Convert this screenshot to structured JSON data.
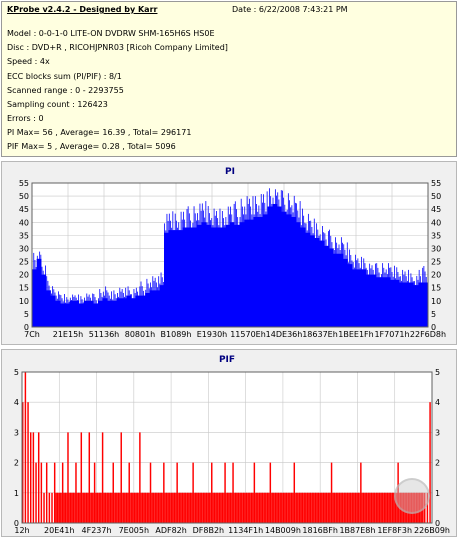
{
  "header": {
    "title": "KProbe v2.4.2 - Designed by Karr",
    "date": "Date : 6/22/2008 7:43:21 PM",
    "lines": [
      "Model : 0-0-1-0 LITE-ON DVDRW SHM-165H6S HS0E",
      "Disc : DVD+R , RICOHJPNR03 [Ricoh Company Limited]",
      "Speed : 4x",
      "ECC blocks sum (PI/PIF) : 8/1",
      "Scanned range : 0 - 2293755",
      "Sampling count : 126423",
      "Errors : 0",
      "PI Max= 56 , Average= 16.39 , Total= 296171",
      "PIF Max= 5 , Average= 0.28 , Total= 5096"
    ]
  },
  "colors": {
    "pi_fill": "#0000ff",
    "pif_fill": "#ff0000",
    "plot_bg": "#ffffff",
    "grid": "#c8c8c8",
    "panel_bg": "#f0f0f0",
    "title": "#000080"
  },
  "chart_data": [
    {
      "type": "area",
      "title": "PI",
      "ylim": [
        0,
        55
      ],
      "yticks": [
        0,
        5,
        10,
        15,
        20,
        25,
        30,
        35,
        40,
        45,
        50,
        55
      ],
      "xtick_labels": [
        "7Ch",
        "21E15h",
        "51136h",
        "80801h",
        "B1089h",
        "E1930h",
        "11570Eh",
        "14DE36h",
        "18637Eh",
        "1BEE1Fh",
        "1F7071h",
        "22F6D8h"
      ],
      "grid": true,
      "series": [
        {
          "values": [
            22,
            26,
            20,
            14,
            12,
            10,
            9,
            9,
            10,
            10,
            9,
            10,
            10,
            9,
            10,
            11,
            10,
            10,
            11,
            11,
            12,
            11,
            12,
            12,
            13,
            14,
            14,
            16,
            36,
            37,
            37,
            37,
            38,
            38,
            38,
            39,
            40,
            39,
            38,
            38,
            38,
            39,
            40,
            39,
            40,
            41,
            41,
            42,
            42,
            43,
            46,
            47,
            46,
            44,
            43,
            42,
            40,
            38,
            36,
            35,
            34,
            33,
            31,
            30,
            28,
            28,
            26,
            24,
            22,
            22,
            22,
            20,
            20,
            19,
            19,
            19,
            18,
            18,
            17,
            17,
            17,
            16,
            17,
            17
          ],
          "peaks": [
            31,
            30,
            25,
            20,
            16,
            14,
            13,
            12,
            13,
            13,
            13,
            14,
            14,
            13,
            15,
            16,
            14,
            15,
            16,
            16,
            17,
            16,
            17,
            18,
            19,
            20,
            20,
            22,
            45,
            46,
            46,
            47,
            48,
            47,
            47,
            48,
            49,
            48,
            47,
            47,
            47,
            49,
            50,
            49,
            50,
            51,
            51,
            52,
            53,
            54,
            56,
            55,
            55,
            53,
            52,
            51,
            49,
            47,
            45,
            43,
            42,
            41,
            39,
            38,
            35,
            35,
            33,
            31,
            29,
            28,
            28,
            26,
            26,
            25,
            25,
            25,
            24,
            24,
            23,
            23,
            22,
            21,
            25,
            24
          ]
        }
      ]
    },
    {
      "type": "bar",
      "title": "PIF",
      "ylim": [
        0,
        5
      ],
      "yticks": [
        0,
        1,
        2,
        3,
        4,
        5
      ],
      "xtick_labels": [
        "12h",
        "20E41h",
        "4F237h",
        "7E005h",
        "ADF82h",
        "DF8B2h",
        "1134F1h",
        "14B009h",
        "1816BFh",
        "1B87E8h",
        "1EF8F3h",
        "226B09h"
      ],
      "grid": true,
      "series": [
        {
          "values": [
            4,
            5,
            4,
            3,
            3,
            2,
            3,
            2,
            1,
            2,
            1,
            1,
            2,
            1,
            1,
            2,
            1,
            3,
            1,
            1,
            2,
            1,
            3,
            1,
            1,
            3,
            1,
            2,
            1,
            1,
            3,
            1,
            1,
            1,
            2,
            1,
            1,
            3,
            1,
            1,
            2,
            1,
            1,
            1,
            3,
            1,
            1,
            1,
            2,
            1,
            1,
            1,
            1,
            2,
            1,
            1,
            1,
            1,
            2,
            1,
            1,
            1,
            1,
            1,
            2,
            1,
            1,
            1,
            1,
            1,
            1,
            2,
            1,
            1,
            1,
            1,
            2,
            1,
            1,
            2,
            1,
            1,
            1,
            1,
            1,
            1,
            1,
            2,
            1,
            1,
            1,
            1,
            1,
            2,
            1,
            1,
            1,
            1,
            1,
            1,
            1,
            1,
            2,
            1,
            1,
            1,
            1,
            1,
            1,
            1,
            1,
            1,
            1,
            1,
            1,
            1,
            2,
            1,
            1,
            1,
            1,
            1,
            1,
            1,
            1,
            1,
            1,
            2,
            1,
            1,
            1,
            1,
            1,
            1,
            1,
            1,
            1,
            1,
            1,
            1,
            1,
            2,
            1,
            1,
            1,
            1,
            1,
            1,
            1,
            1,
            1,
            1,
            1,
            4
          ]
        }
      ]
    }
  ]
}
